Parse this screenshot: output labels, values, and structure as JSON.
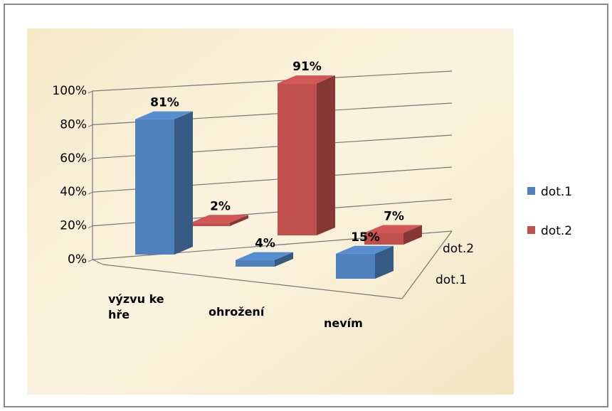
{
  "chart_data": {
    "type": "bar3d",
    "categories": [
      "výzvu ke hře",
      "ohrožení",
      "nevím"
    ],
    "series": [
      {
        "name": "dot.1",
        "color": "#4f81bd",
        "values": [
          81,
          4,
          15
        ],
        "value_labels": [
          "81%",
          "4%",
          "15%"
        ]
      },
      {
        "name": "dot.2",
        "color": "#c0504d",
        "values": [
          2,
          91,
          7
        ],
        "value_labels": [
          "2%",
          "91%",
          "7%"
        ]
      }
    ],
    "ylim": [
      0,
      100
    ],
    "yticks": [
      {
        "value": 0,
        "label": "0%"
      },
      {
        "value": 20,
        "label": "20%"
      },
      {
        "value": 40,
        "label": "40%"
      },
      {
        "value": 60,
        "label": "60%"
      },
      {
        "value": 80,
        "label": "80%"
      },
      {
        "value": 100,
        "label": "100%"
      }
    ],
    "grid": true,
    "legend": "right"
  }
}
